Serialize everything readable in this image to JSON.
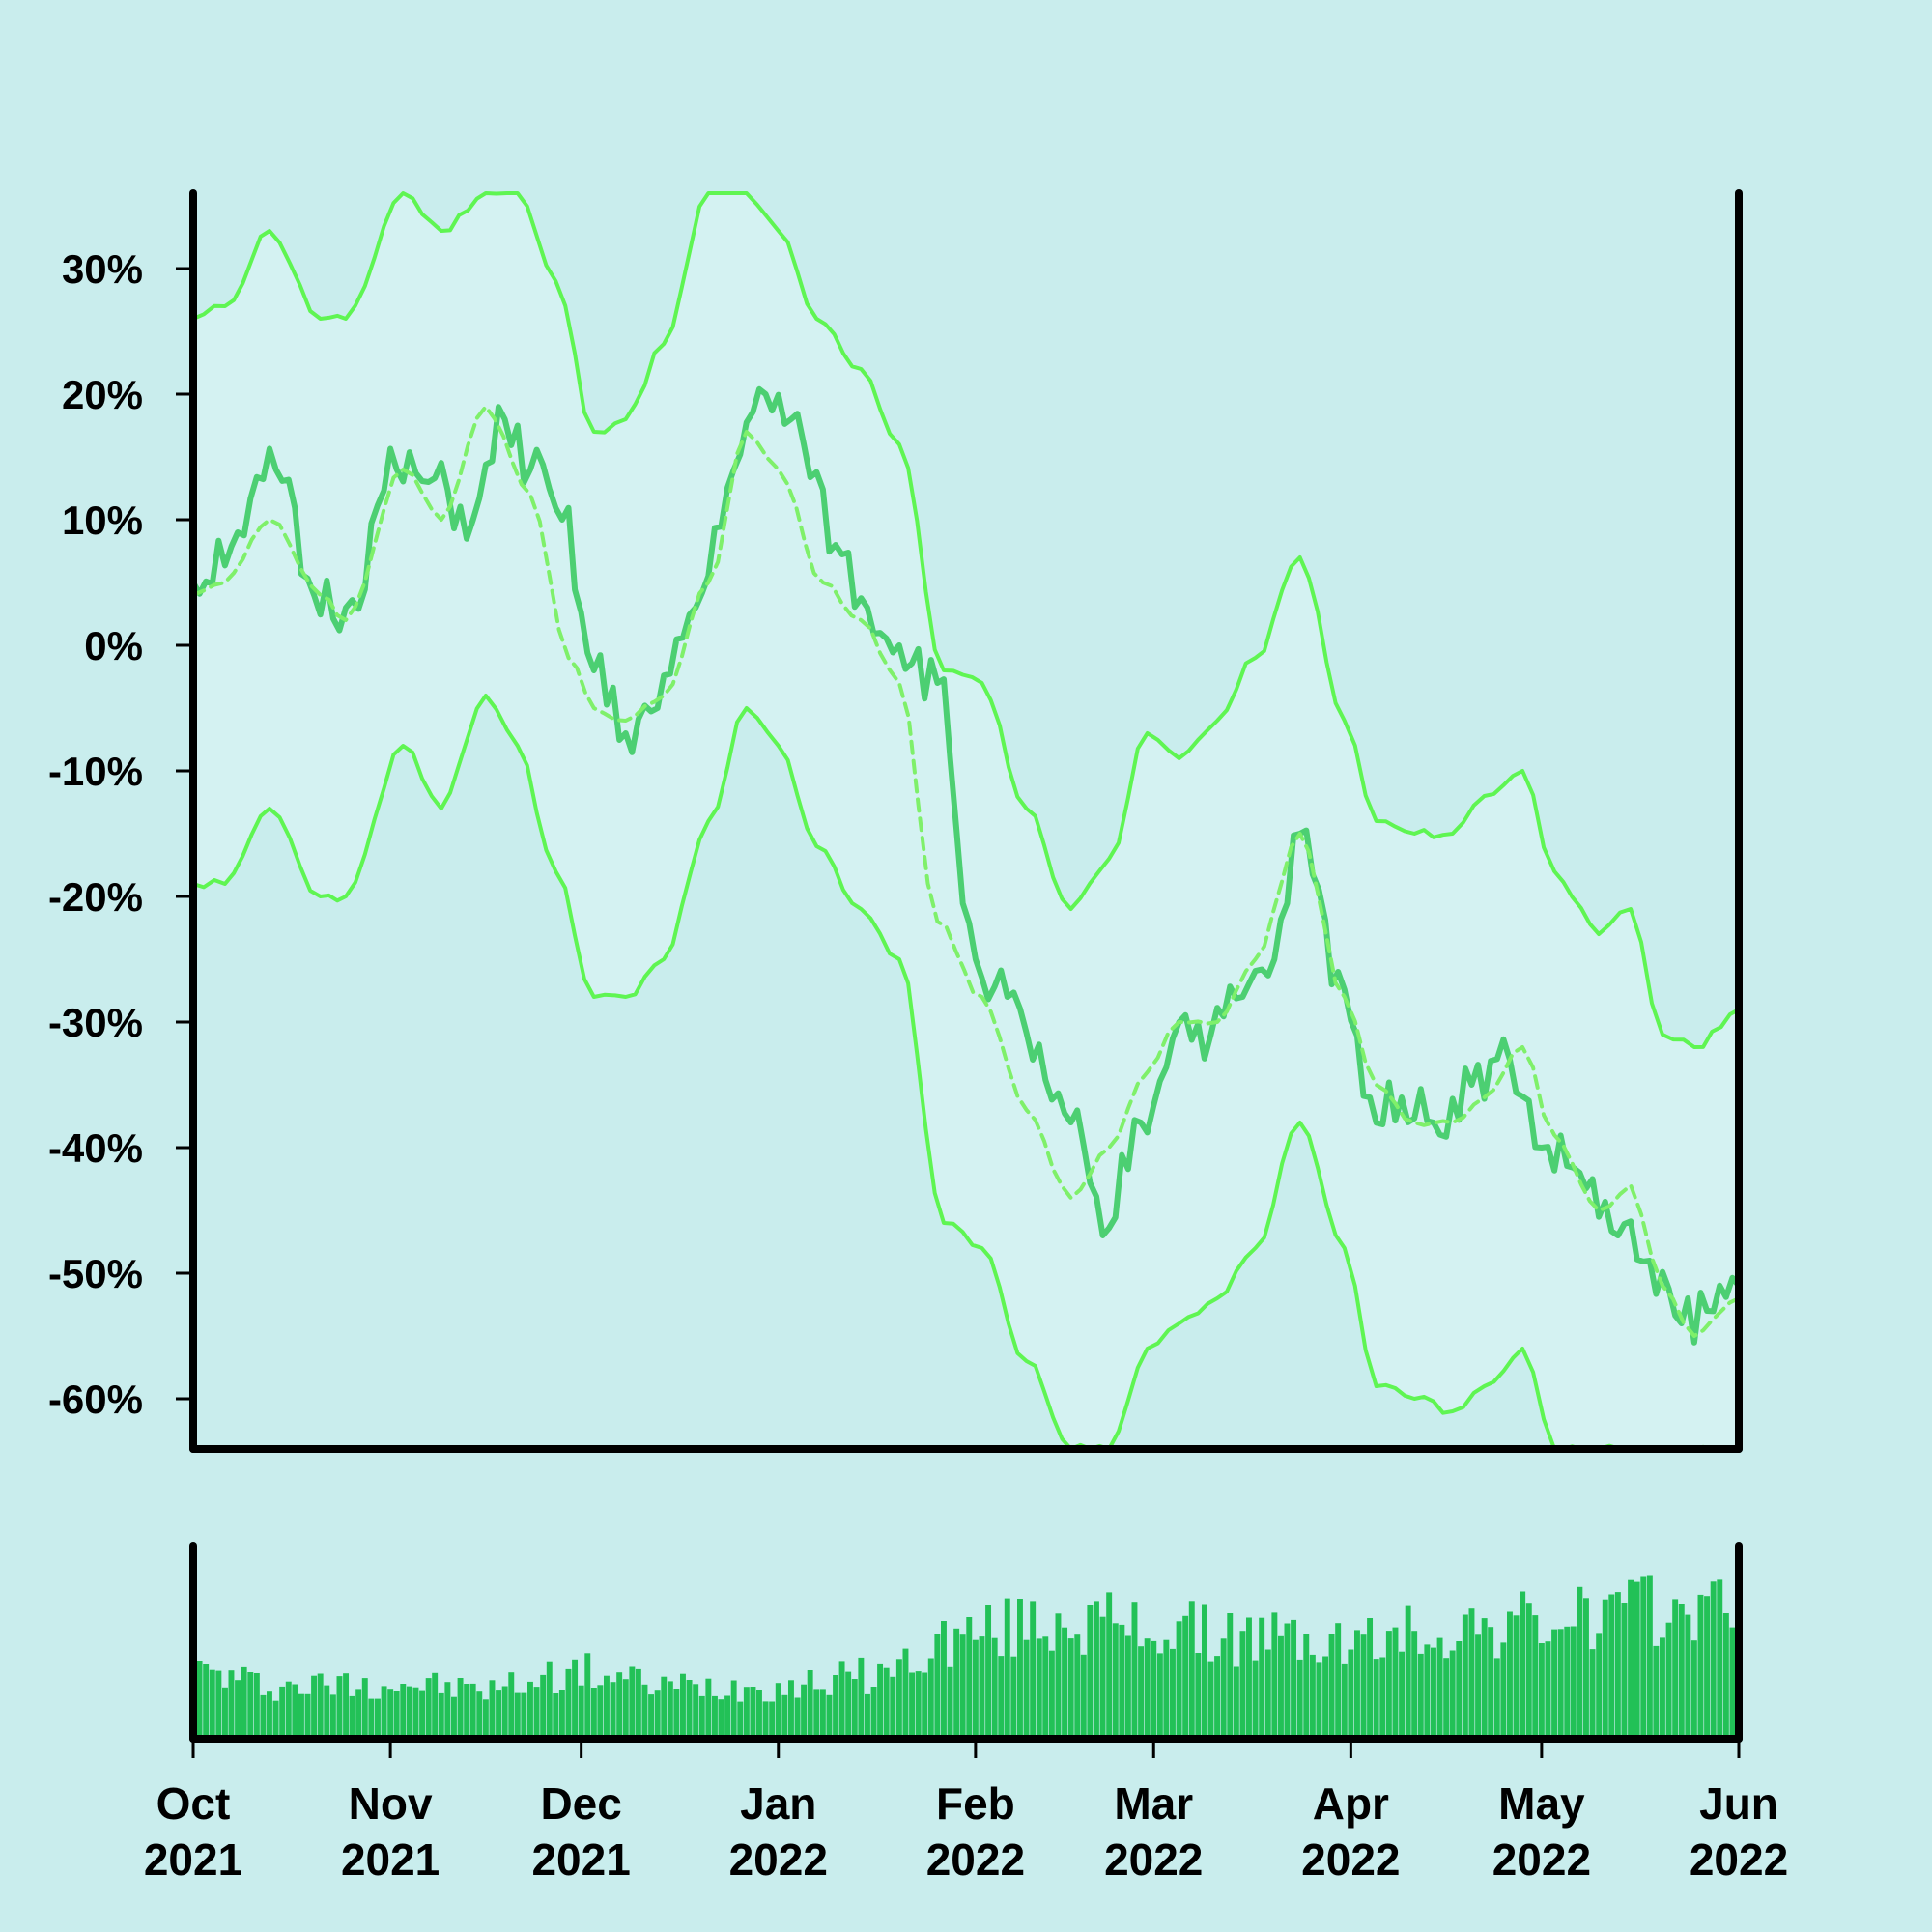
{
  "chart_data": [
    {
      "type": "line",
      "title": "",
      "xlabel": "",
      "ylabel": "",
      "ylim": [
        -64,
        36
      ],
      "xlim": [
        "2021-10-01",
        "2022-06-01"
      ],
      "grid": false,
      "yticks": [
        30,
        20,
        10,
        0,
        -10,
        -20,
        -30,
        -40,
        -50,
        -60
      ],
      "ytick_labels": [
        "30%",
        "20%",
        "10%",
        "0%",
        "-10%",
        "-20%",
        "-30%",
        "-40%",
        "-50%",
        "-60%"
      ],
      "colors": {
        "price": "#4ccf72",
        "band": "#5ff552",
        "mean": "#7ff06a",
        "band_fill": "#d4f2f2",
        "volume": "#22c157"
      },
      "series": [
        {
          "role": "price",
          "x": [
            "2021-10-01",
            "2021-10-08",
            "2021-10-14",
            "2021-10-20",
            "2021-10-25",
            "2021-11-02",
            "2021-11-07",
            "2021-11-14",
            "2021-11-19",
            "2021-11-23",
            "2021-11-28",
            "2021-12-03",
            "2021-12-08",
            "2021-12-13",
            "2021-12-19",
            "2021-12-25",
            "2021-12-30",
            "2022-01-05",
            "2022-01-10",
            "2022-01-15",
            "2022-01-20",
            "2022-01-26",
            "2022-02-01",
            "2022-02-06",
            "2022-02-10",
            "2022-02-16",
            "2022-02-21",
            "2022-02-27",
            "2022-03-05",
            "2022-03-10",
            "2022-03-15",
            "2022-03-20",
            "2022-03-24",
            "2022-03-30",
            "2022-04-04",
            "2022-04-09",
            "2022-04-14",
            "2022-04-20",
            "2022-04-26",
            "2022-05-01",
            "2022-05-07",
            "2022-05-13",
            "2022-05-18",
            "2022-05-23",
            "2022-05-27",
            "2022-06-01"
          ],
          "y": [
            5,
            9,
            14,
            4,
            3,
            14,
            13,
            10,
            18,
            14,
            10,
            -2,
            -7,
            -5,
            3,
            14,
            20,
            16,
            8,
            3,
            0,
            -3,
            -25,
            -28,
            -33,
            -38,
            -47,
            -38,
            -30,
            -31,
            -28,
            -25,
            -15,
            -26,
            -36,
            -36,
            -38,
            -35,
            -33,
            -40,
            -42,
            -47,
            -49,
            -54,
            -53,
            -51
          ]
        },
        {
          "role": "mean",
          "x": [
            "2021-10-01",
            "2021-10-06",
            "2021-10-13",
            "2021-10-21",
            "2021-10-25",
            "2021-11-03",
            "2021-11-09",
            "2021-11-16",
            "2021-11-23",
            "2021-11-29",
            "2021-12-03",
            "2021-12-08",
            "2021-12-14",
            "2021-12-21",
            "2021-12-27",
            "2022-01-01",
            "2022-01-08",
            "2022-01-14",
            "2022-01-20",
            "2022-01-26",
            "2022-02-02",
            "2022-02-09",
            "2022-02-16",
            "2022-02-22",
            "2022-02-28",
            "2022-03-05",
            "2022-03-11",
            "2022-03-17",
            "2022-03-24",
            "2022-03-31",
            "2022-04-05",
            "2022-04-11",
            "2022-04-17",
            "2022-04-22",
            "2022-04-28",
            "2022-05-03",
            "2022-05-10",
            "2022-05-15",
            "2022-05-20",
            "2022-05-25",
            "2022-06-01"
          ],
          "y": [
            4,
            5,
            10,
            4,
            2,
            14,
            10,
            19,
            12,
            -1,
            -5,
            -6,
            -4,
            5,
            17,
            14,
            5,
            2,
            -3,
            -22,
            -28,
            -37,
            -44,
            -40,
            -34,
            -30,
            -30,
            -25,
            -15,
            -28,
            -35,
            -38,
            -38,
            -36,
            -32,
            -39,
            -45,
            -43,
            -51,
            -55,
            -52
          ]
        },
        {
          "role": "upper_band",
          "x": [
            "2021-10-01",
            "2021-10-06",
            "2021-10-13",
            "2021-10-21",
            "2021-10-25",
            "2021-11-03",
            "2021-11-09",
            "2021-11-16",
            "2021-11-21",
            "2021-11-27",
            "2021-12-03",
            "2021-12-08",
            "2021-12-14",
            "2021-12-21",
            "2021-12-27",
            "2022-01-01",
            "2022-01-07",
            "2022-01-14",
            "2022-01-20",
            "2022-01-27",
            "2022-02-02",
            "2022-02-09",
            "2022-02-16",
            "2022-02-22",
            "2022-02-28",
            "2022-03-05",
            "2022-03-11",
            "2022-03-17",
            "2022-03-24",
            "2022-03-31",
            "2022-04-05",
            "2022-04-11",
            "2022-04-17",
            "2022-04-22",
            "2022-04-28",
            "2022-05-03",
            "2022-05-10",
            "2022-05-15",
            "2022-05-20",
            "2022-05-25",
            "2022-06-01"
          ],
          "y": [
            26,
            27,
            33,
            26,
            26,
            36,
            33,
            36,
            36,
            29,
            17,
            18,
            24,
            36,
            36,
            33,
            26,
            22,
            16,
            -2,
            -3,
            -13,
            -21,
            -17,
            -7,
            -9,
            -6,
            -1,
            7,
            -6,
            -14,
            -15,
            -15,
            -12,
            -10,
            -18,
            -23,
            -21,
            -31,
            -32,
            -29
          ]
        },
        {
          "role": "lower_band",
          "x": [
            "2021-10-01",
            "2021-10-06",
            "2021-10-13",
            "2021-10-21",
            "2021-10-25",
            "2021-11-03",
            "2021-11-09",
            "2021-11-16",
            "2021-11-21",
            "2021-11-27",
            "2021-12-03",
            "2021-12-08",
            "2021-12-14",
            "2021-12-21",
            "2021-12-27",
            "2022-01-01",
            "2022-01-07",
            "2022-01-14",
            "2022-01-20",
            "2022-01-27",
            "2022-02-02",
            "2022-02-09",
            "2022-02-16",
            "2022-02-22",
            "2022-02-28",
            "2022-03-05",
            "2022-03-11",
            "2022-03-17",
            "2022-03-24",
            "2022-03-31",
            "2022-04-05",
            "2022-04-11",
            "2022-04-17",
            "2022-04-22",
            "2022-04-28",
            "2022-05-03",
            "2022-05-10",
            "2022-05-15",
            "2022-05-20",
            "2022-05-25",
            "2022-06-01"
          ],
          "y": [
            -19,
            -19,
            -13,
            -20,
            -20,
            -8,
            -13,
            -4,
            -8,
            -18,
            -28,
            -28,
            -25,
            -14,
            -5,
            -8,
            -16,
            -21,
            -25,
            -46,
            -48,
            -57,
            -64,
            -64,
            -56,
            -54,
            -52,
            -48,
            -38,
            -48,
            -59,
            -60,
            -61,
            -59,
            -56,
            -64,
            -64,
            -64,
            -64,
            -64,
            -64
          ]
        }
      ]
    },
    {
      "type": "bar",
      "title": "",
      "xlabel": "",
      "ylabel": "",
      "description": "volume",
      "x": [
        "2021-10-01",
        "2021-10-15",
        "2021-11-01",
        "2021-11-15",
        "2021-12-01",
        "2021-12-15",
        "2022-01-01",
        "2022-01-15",
        "2022-02-01",
        "2022-02-15",
        "2022-03-01",
        "2022-03-15",
        "2022-04-01",
        "2022-04-15",
        "2022-05-01",
        "2022-05-15",
        "2022-06-01"
      ],
      "values": [
        38,
        30,
        32,
        28,
        38,
        30,
        30,
        36,
        60,
        68,
        62,
        58,
        54,
        62,
        66,
        72,
        76
      ],
      "ylim": [
        0,
        110
      ],
      "xtick_labels": [
        [
          "Oct",
          "2021"
        ],
        [
          "Nov",
          "2021"
        ],
        [
          "Dec",
          "2021"
        ],
        [
          "Jan",
          "2022"
        ],
        [
          "Feb",
          "2022"
        ],
        [
          "Mar",
          "2022"
        ],
        [
          "Apr",
          "2022"
        ],
        [
          "May",
          "2022"
        ],
        [
          "Jun",
          "2022"
        ]
      ],
      "xtick_dates": [
        "2021-10-01",
        "2021-11-01",
        "2021-12-01",
        "2022-01-01",
        "2022-02-01",
        "2022-03-01",
        "2022-04-01",
        "2022-05-01",
        "2022-06-01"
      ]
    }
  ]
}
